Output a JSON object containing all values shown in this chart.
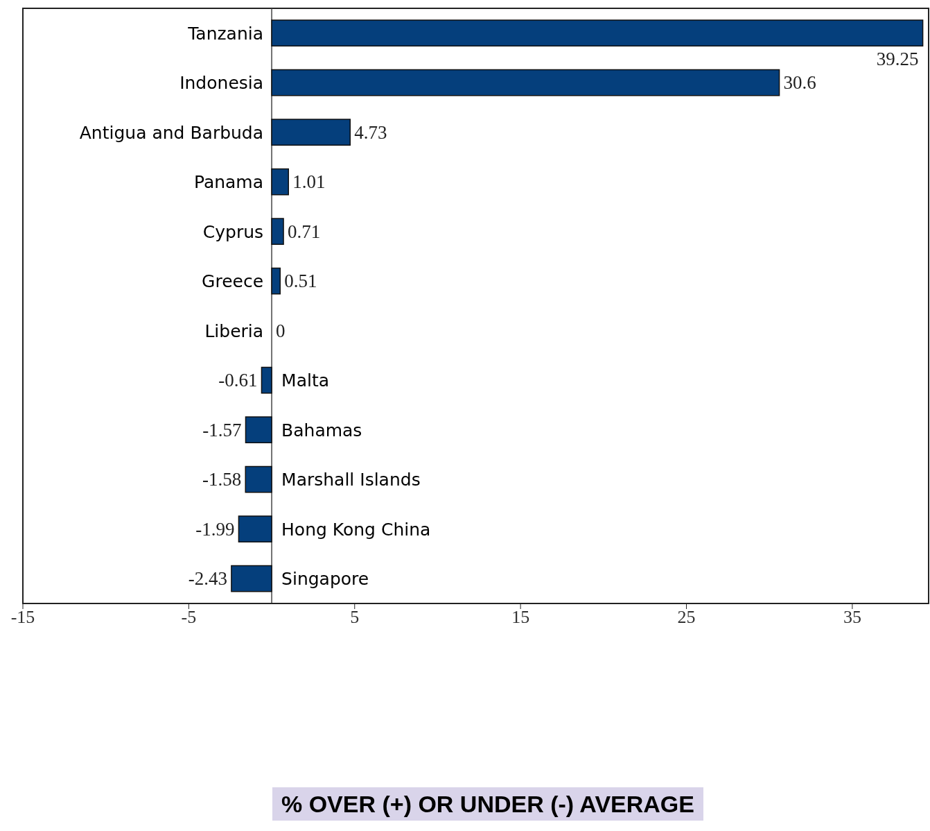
{
  "chart_data": {
    "type": "bar",
    "orientation": "horizontal",
    "annotations": [
      "% OVER (+) OR UNDER (-) AVERAGE"
    ],
    "categories": [
      "Tanzania",
      "Indonesia",
      "Antigua and Barbuda",
      "Panama",
      "Cyprus",
      "Greece",
      "Liberia",
      "Malta",
      "Bahamas",
      "Marshall Islands",
      "Hong Kong China",
      "Singapore"
    ],
    "values": [
      39.25,
      30.6,
      4.73,
      1.01,
      0.71,
      0.51,
      0,
      -0.61,
      -1.57,
      -1.58,
      -1.99,
      -2.43
    ],
    "color": "#053f7c",
    "data_labels": true,
    "xlim": [
      -15,
      39.6
    ],
    "xticks": [
      -15,
      -5,
      5,
      15,
      25,
      35
    ]
  }
}
